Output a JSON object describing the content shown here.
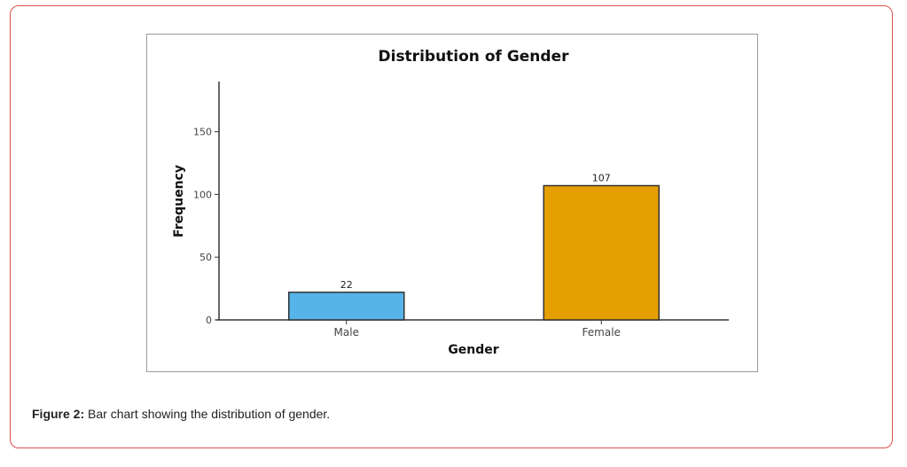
{
  "chart_data": {
    "type": "bar",
    "title": "Distribution of Gender",
    "xlabel": "Gender",
    "ylabel": "Frequency",
    "categories": [
      "Male",
      "Female"
    ],
    "values": [
      22,
      107
    ],
    "data_labels": [
      "22",
      "107"
    ],
    "ylim": [
      0,
      190
    ],
    "yticks": [
      0,
      50,
      100,
      150
    ],
    "grid": false,
    "colors": [
      "#56b4e9",
      "#e69f00"
    ]
  },
  "caption": {
    "label": "Figure 2:",
    "text": " Bar chart showing the distribution of gender."
  }
}
